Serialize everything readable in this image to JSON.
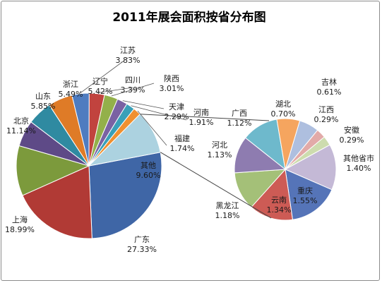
{
  "chart_data": {
    "type": "bar-of-pie",
    "title": "2011年展会面积按省分布图",
    "main_pie": [
      {
        "name": "广东",
        "value": 27.33,
        "color": "#3f66a6"
      },
      {
        "name": "上海",
        "value": 18.99,
        "color": "#b13a35"
      },
      {
        "name": "北京",
        "value": 11.14,
        "color": "#7c9a3c"
      },
      {
        "name": "山东",
        "value": 5.85,
        "color": "#5e4a87"
      },
      {
        "name": "浙江",
        "value": 5.49,
        "color": "#2f8aa1"
      },
      {
        "name": "辽宁",
        "value": 5.42,
        "color": "#df7b27"
      },
      {
        "name": "江苏",
        "value": 3.83,
        "color": "#4f7cc0"
      },
      {
        "name": "四川",
        "value": 3.39,
        "color": "#c1433e"
      },
      {
        "name": "陕西",
        "value": 3.01,
        "color": "#93b04a"
      },
      {
        "name": "天津",
        "value": 2.29,
        "color": "#7a62a3"
      },
      {
        "name": "河南",
        "value": 1.91,
        "color": "#3aa0b8"
      },
      {
        "name": "福建",
        "value": 1.74,
        "color": "#f0902f"
      },
      {
        "name": "其他",
        "value": 9.6,
        "color": "#acd2e0"
      }
    ],
    "secondary_pie": [
      {
        "name": "吉林",
        "value": 0.61,
        "color": "#aebfdf"
      },
      {
        "name": "江西",
        "value": 0.29,
        "color": "#e2aaa8"
      },
      {
        "name": "安徽",
        "value": 0.29,
        "color": "#cddcae"
      },
      {
        "name": "其他省市",
        "value": 1.4,
        "color": "#c4b9d6"
      },
      {
        "name": "重庆",
        "value": 1.55,
        "color": "#5574b8"
      },
      {
        "name": "云南",
        "value": 1.34,
        "color": "#cd5b55"
      },
      {
        "name": "黑龙江",
        "value": 1.18,
        "color": "#a4c078"
      },
      {
        "name": "河北",
        "value": 1.13,
        "color": "#8e7cb0"
      },
      {
        "name": "广西",
        "value": 1.12,
        "color": "#6eb9cc"
      },
      {
        "name": "湖北",
        "value": 0.7,
        "color": "#f5a55f"
      }
    ],
    "label_suffix": "%"
  }
}
